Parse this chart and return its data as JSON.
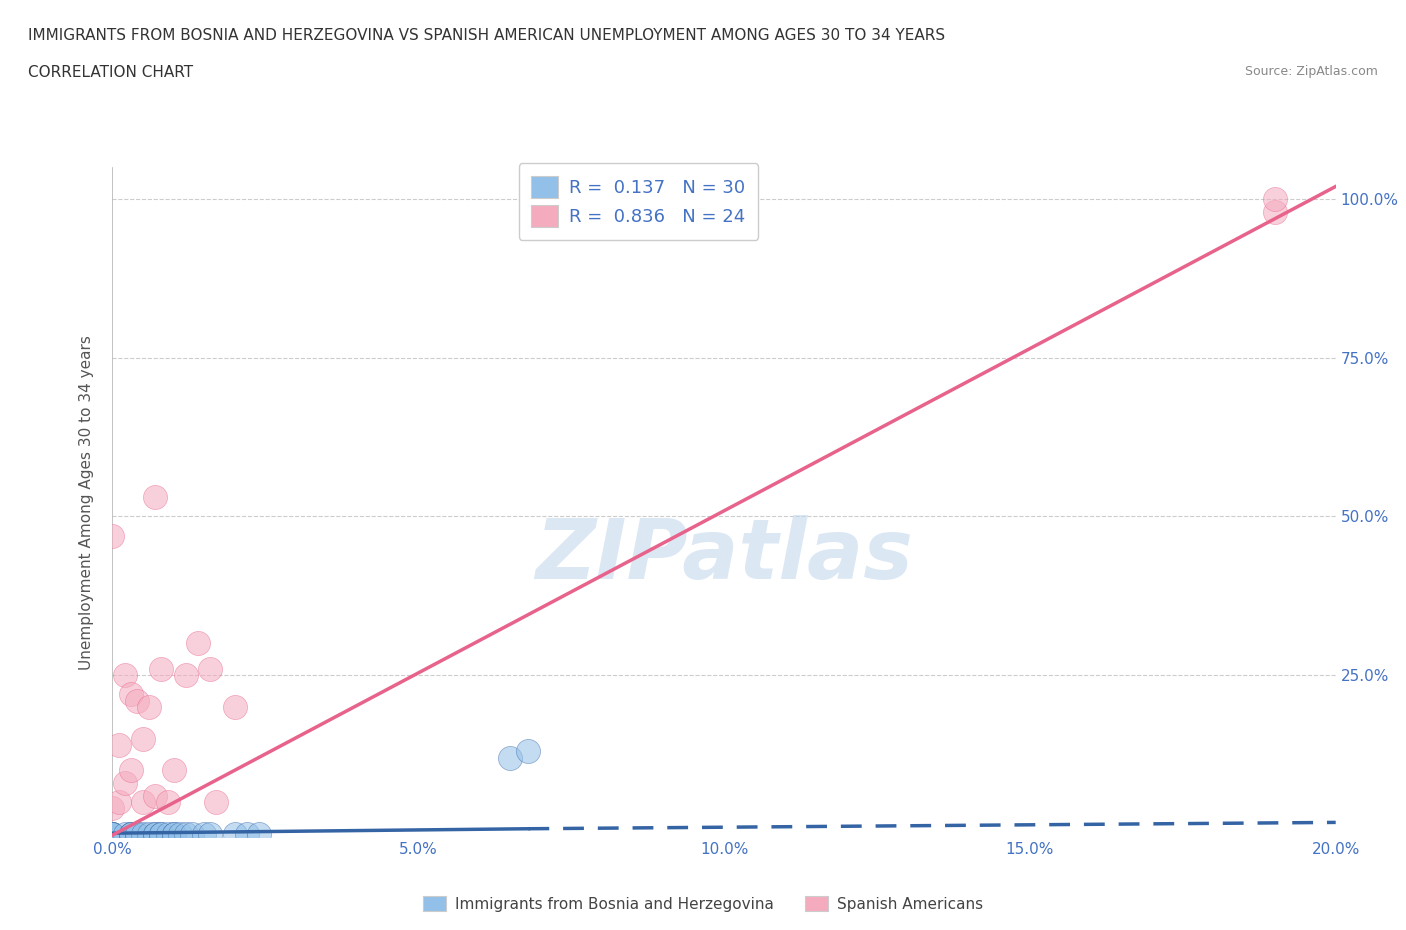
{
  "title_line1": "IMMIGRANTS FROM BOSNIA AND HERZEGOVINA VS SPANISH AMERICAN UNEMPLOYMENT AMONG AGES 30 TO 34 YEARS",
  "title_line2": "CORRELATION CHART",
  "source": "Source: ZipAtlas.com",
  "ylabel": "Unemployment Among Ages 30 to 34 years",
  "xlim": [
    0.0,
    0.2
  ],
  "ylim": [
    -0.005,
    1.05
  ],
  "xtick_labels": [
    "0.0%",
    "5.0%",
    "10.0%",
    "15.0%",
    "20.0%"
  ],
  "xtick_vals": [
    0.0,
    0.05,
    0.1,
    0.15,
    0.2
  ],
  "ytick_labels": [
    "25.0%",
    "50.0%",
    "75.0%",
    "100.0%"
  ],
  "ytick_vals": [
    0.25,
    0.5,
    0.75,
    1.0
  ],
  "watermark": "ZIPatlas",
  "legend_r1": "R =  0.137   N = 30",
  "legend_r2": "R =  0.836   N = 24",
  "blue_color": "#92C0E8",
  "pink_color": "#F4ABBE",
  "blue_line_color": "#3564A5",
  "pink_line_color": "#E8638C",
  "blue_scatter": {
    "x": [
      0.0,
      0.0,
      0.0,
      0.0,
      0.0,
      0.002,
      0.003,
      0.003,
      0.003,
      0.004,
      0.004,
      0.005,
      0.006,
      0.007,
      0.007,
      0.008,
      0.008,
      0.009,
      0.01,
      0.01,
      0.011,
      0.012,
      0.013,
      0.015,
      0.016,
      0.02,
      0.022,
      0.024,
      0.065,
      0.068
    ],
    "y": [
      0.0,
      0.0,
      0.0,
      0.0,
      0.0,
      0.0,
      0.0,
      0.0,
      0.0,
      0.0,
      0.0,
      0.0,
      0.0,
      0.0,
      0.0,
      0.0,
      0.0,
      0.0,
      0.0,
      0.0,
      0.0,
      0.0,
      0.0,
      0.0,
      0.0,
      0.0,
      0.0,
      0.0,
      0.12,
      0.13
    ]
  },
  "pink_scatter": {
    "x": [
      0.0,
      0.0,
      0.001,
      0.001,
      0.002,
      0.002,
      0.003,
      0.003,
      0.004,
      0.005,
      0.005,
      0.006,
      0.007,
      0.007,
      0.008,
      0.009,
      0.01,
      0.012,
      0.014,
      0.016,
      0.017,
      0.02,
      0.19,
      0.19
    ],
    "y": [
      0.04,
      0.47,
      0.05,
      0.14,
      0.08,
      0.25,
      0.1,
      0.22,
      0.21,
      0.05,
      0.15,
      0.2,
      0.06,
      0.53,
      0.26,
      0.05,
      0.1,
      0.25,
      0.3,
      0.26,
      0.05,
      0.2,
      0.98,
      1.0
    ]
  },
  "blue_trendline_solid": {
    "x": [
      0.0,
      0.068
    ],
    "y": [
      0.001,
      0.008
    ]
  },
  "blue_trendline_dashed": {
    "x": [
      0.068,
      0.2
    ],
    "y": [
      0.008,
      0.018
    ]
  },
  "pink_trendline": {
    "x": [
      0.0,
      0.2
    ],
    "y": [
      -0.002,
      1.02
    ]
  },
  "background_color": "#FFFFFF",
  "grid_color": "#CCCCCC"
}
